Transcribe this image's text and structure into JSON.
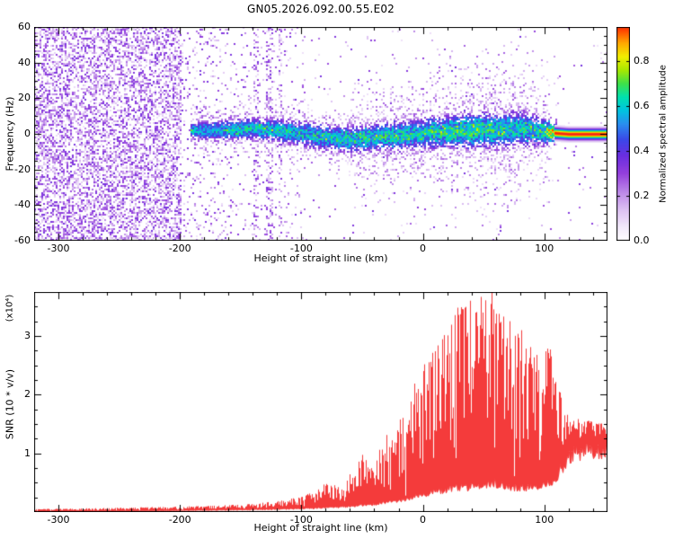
{
  "title": "GN05.2026.092.00.55.E02",
  "chart_data": [
    {
      "type": "heatmap",
      "title": "GN05.2026.092.00.55.E02",
      "xlabel": "Height of straight line (km)",
      "ylabel": "Frequency (Hz)",
      "xlim": [
        -320,
        152
      ],
      "ylim": [
        -60,
        60
      ],
      "x_ticks": [
        -300,
        -200,
        -100,
        0,
        100
      ],
      "x_tick_labels": [
        "-300",
        "-200",
        "-100",
        "0",
        "100"
      ],
      "y_ticks": [
        -60,
        -40,
        -20,
        0,
        20,
        40,
        60
      ],
      "y_tick_labels": [
        "-60",
        "-40",
        "-20",
        "0",
        "20",
        "40",
        "60"
      ],
      "grid": false,
      "colorbar": {
        "label": "Normalized spectral amplitude",
        "ticks": [
          0.0,
          0.2,
          0.4,
          0.6,
          0.8
        ],
        "tick_labels": [
          "0.0",
          "0.2",
          "0.4",
          "0.6",
          "0.8"
        ],
        "range": [
          0,
          0.95
        ]
      },
      "colormap": [
        [
          0.0,
          "#ffffff"
        ],
        [
          0.06,
          "#f3eafb"
        ],
        [
          0.14,
          "#dcc0f2"
        ],
        [
          0.22,
          "#bb86e8"
        ],
        [
          0.3,
          "#9440dd"
        ],
        [
          0.38,
          "#6a2ee0"
        ],
        [
          0.45,
          "#3b47e8"
        ],
        [
          0.52,
          "#2a8df0"
        ],
        [
          0.58,
          "#00c4e0"
        ],
        [
          0.64,
          "#00e0b0"
        ],
        [
          0.7,
          "#3ee04a"
        ],
        [
          0.76,
          "#a8e800"
        ],
        [
          0.82,
          "#f2ee00"
        ],
        [
          0.88,
          "#ffa800"
        ],
        [
          0.94,
          "#ff4000"
        ],
        [
          1.0,
          "#e00048"
        ]
      ],
      "noise": {
        "regions": [
          {
            "x_max": -198,
            "density": 0.48
          },
          {
            "x_max": -160,
            "density": 0.1
          },
          {
            "x_max": -95,
            "density": 0.055
          },
          {
            "x_max": 152,
            "density": 0.012
          }
        ],
        "v_min": 0.07,
        "v_max": 0.36
      },
      "stripes": [
        {
          "x": -157,
          "w": 3,
          "density": 0.12
        },
        {
          "x": -137,
          "w": 4,
          "density": 0.3
        },
        {
          "x": -126,
          "w": 5,
          "density": 0.38
        },
        {
          "x": -117,
          "w": 3,
          "density": 0.25
        }
      ],
      "band": {
        "x_start": -192,
        "speckle_x_end": 111,
        "tail_x_start": 108,
        "tail_sigma": 2.0,
        "tail_peak": 0.97,
        "centerline": [
          [
            -192,
            2
          ],
          [
            -160,
            2
          ],
          [
            -140,
            3
          ],
          [
            -120,
            2
          ],
          [
            -100,
            0
          ],
          [
            -80,
            -2
          ],
          [
            -60,
            -3
          ],
          [
            -40,
            -2
          ],
          [
            -20,
            -1
          ],
          [
            0,
            0
          ],
          [
            20,
            1
          ],
          [
            40,
            2
          ],
          [
            60,
            2
          ],
          [
            80,
            3
          ],
          [
            100,
            1
          ],
          [
            120,
            0
          ],
          [
            152,
            0
          ]
        ],
        "sigma": [
          [
            -192,
            3
          ],
          [
            -150,
            3.5
          ],
          [
            -100,
            4
          ],
          [
            -50,
            4.5
          ],
          [
            0,
            5
          ],
          [
            40,
            6
          ],
          [
            80,
            6
          ],
          [
            105,
            4
          ],
          [
            112,
            2.5
          ],
          [
            152,
            2.2
          ]
        ],
        "amplitude": [
          [
            -192,
            0.55
          ],
          [
            -150,
            0.6
          ],
          [
            -100,
            0.6
          ],
          [
            -50,
            0.62
          ],
          [
            0,
            0.62
          ],
          [
            50,
            0.65
          ],
          [
            80,
            0.6
          ],
          [
            100,
            0.65
          ],
          [
            110,
            0.9
          ],
          [
            152,
            0.95
          ]
        ]
      },
      "seed": 99
    },
    {
      "type": "line",
      "xlabel": "Height of straight line (km)",
      "ylabel": "SNR (10 * v/v)",
      "scale_label": "(x10⁴)",
      "xlim": [
        -320,
        152
      ],
      "ylim": [
        0,
        3.75
      ],
      "x_ticks": [
        -300,
        -200,
        -100,
        0,
        100
      ],
      "x_tick_labels": [
        "-300",
        "-200",
        "-100",
        "0",
        "100"
      ],
      "y_ticks": [
        1,
        2,
        3
      ],
      "y_tick_labels": [
        "1",
        "2",
        "3"
      ],
      "color": "#f43b3b",
      "envelope": [
        [
          -320,
          0.01,
          0.05
        ],
        [
          -260,
          0.02,
          0.07
        ],
        [
          -210,
          0.03,
          0.09
        ],
        [
          -170,
          0.04,
          0.11
        ],
        [
          -140,
          0.05,
          0.14
        ],
        [
          -115,
          0.06,
          0.2
        ],
        [
          -100,
          0.07,
          0.28
        ],
        [
          -88,
          0.08,
          0.35
        ],
        [
          -78,
          0.1,
          0.55
        ],
        [
          -68,
          0.1,
          0.4
        ],
        [
          -58,
          0.12,
          0.75
        ],
        [
          -48,
          0.15,
          1.05
        ],
        [
          -40,
          0.15,
          0.7
        ],
        [
          -32,
          0.2,
          1.5
        ],
        [
          -24,
          0.22,
          1.2
        ],
        [
          -16,
          0.25,
          1.9
        ],
        [
          -8,
          0.3,
          2.2
        ],
        [
          0,
          0.35,
          2.5
        ],
        [
          8,
          0.4,
          2.8
        ],
        [
          16,
          0.45,
          3.2
        ],
        [
          26,
          0.5,
          3.5
        ],
        [
          36,
          0.5,
          3.6
        ],
        [
          48,
          0.55,
          3.7
        ],
        [
          56,
          0.6,
          3.8
        ],
        [
          66,
          0.55,
          3.5
        ],
        [
          76,
          0.5,
          3.3
        ],
        [
          86,
          0.5,
          3.0
        ],
        [
          96,
          0.55,
          2.7
        ],
        [
          104,
          0.6,
          2.9
        ],
        [
          110,
          0.7,
          2.4
        ],
        [
          116,
          1.0,
          1.7
        ],
        [
          124,
          1.2,
          1.6
        ],
        [
          140,
          1.25,
          1.55
        ],
        [
          152,
          1.3,
          1.5
        ]
      ],
      "seed": 7
    }
  ]
}
